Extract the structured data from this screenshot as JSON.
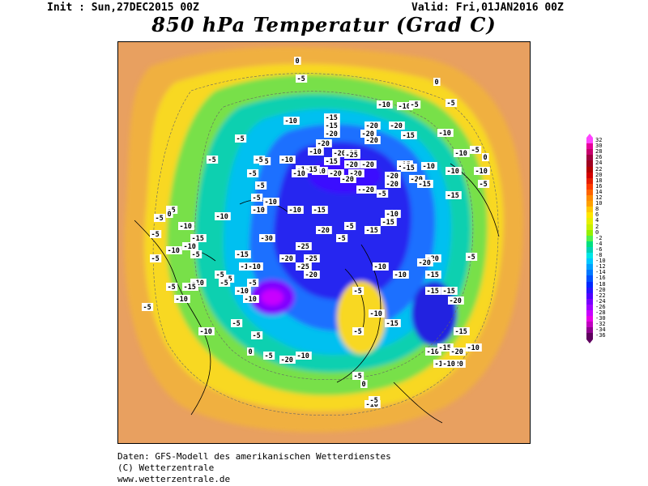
{
  "header": {
    "init": "Init : Sun,27DEC2015 00Z",
    "valid": "Valid: Fri,01JAN2016 00Z",
    "title": "850 hPa Temperatur (Grad C)"
  },
  "footer": {
    "line1": "Daten: GFS-Modell des amerikanischen Wetterdienstes",
    "line2": "(C) Wetterzentrale",
    "line3": "www.wetterzentrale.de"
  },
  "legend": {
    "labels": [
      "32",
      "30",
      "28",
      "26",
      "24",
      "22",
      "20",
      "18",
      "16",
      "14",
      "12",
      "10",
      "8",
      "6",
      "4",
      "2",
      "0",
      "-2",
      "-4",
      "-6",
      "-8",
      "-10",
      "-12",
      "-14",
      "-16",
      "-18",
      "-20",
      "-22",
      "-24",
      "-26",
      "-28",
      "-30",
      "-32",
      "-34",
      "-36"
    ],
    "colors": [
      "#ff44ff",
      "#e6009a",
      "#c8006e",
      "#a00040",
      "#a00020",
      "#b40000",
      "#d20000",
      "#e61e00",
      "#ff3c00",
      "#ff6400",
      "#ff8c00",
      "#ffa000",
      "#ffc800",
      "#ffe600",
      "#e6f000",
      "#c8f000",
      "#96f000",
      "#50f050",
      "#00e080",
      "#00d2b4",
      "#00e6e6",
      "#00c8ff",
      "#00a0ff",
      "#0078ff",
      "#0050ff",
      "#0028ff",
      "#2814ff",
      "#5000ff",
      "#7800ff",
      "#a000ff",
      "#c800ff",
      "#e600e6",
      "#c000c0",
      "#900090",
      "#600060"
    ]
  },
  "map": {
    "contour_labels": [
      {
        "t": "0"
      },
      {
        "t": "-5"
      },
      {
        "t": "0"
      },
      {
        "t": "-5"
      },
      {
        "t": "-10"
      },
      {
        "t": "-10"
      },
      {
        "t": "-5"
      },
      {
        "t": "-10"
      },
      {
        "t": "-15"
      },
      {
        "t": "-15"
      },
      {
        "t": "-20"
      },
      {
        "t": "-20"
      },
      {
        "t": "-20"
      },
      {
        "t": "-15"
      },
      {
        "t": "-10"
      },
      {
        "t": "-5"
      },
      {
        "t": "-20"
      },
      {
        "t": "-20"
      },
      {
        "t": "-20"
      },
      {
        "t": "-25"
      },
      {
        "t": "-20"
      },
      {
        "t": "-15"
      },
      {
        "t": "-5"
      },
      {
        "t": "-10"
      },
      {
        "t": "-10"
      },
      {
        "t": "-20"
      },
      {
        "t": "-20"
      },
      {
        "t": "-15"
      },
      {
        "t": "-10"
      },
      {
        "t": "-5"
      },
      {
        "t": "-20"
      },
      {
        "t": "-20"
      },
      {
        "t": "-15"
      },
      {
        "t": "-20"
      },
      {
        "t": "-20"
      },
      {
        "t": "-15"
      },
      {
        "t": "-20"
      },
      {
        "t": "-5"
      },
      {
        "t": "-5"
      },
      {
        "t": "-10"
      },
      {
        "t": "-15"
      },
      {
        "t": "-10"
      },
      {
        "t": "-5"
      },
      {
        "t": "-10"
      },
      {
        "t": "-10"
      },
      {
        "t": "0"
      },
      {
        "t": "-5"
      },
      {
        "t": "-10"
      },
      {
        "t": "-15"
      },
      {
        "t": "-20"
      },
      {
        "t": "-5"
      },
      {
        "t": "-20"
      },
      {
        "t": "-25"
      },
      {
        "t": "-20"
      },
      {
        "t": "-15"
      },
      {
        "t": "-10"
      },
      {
        "t": "-5"
      },
      {
        "t": "-10"
      },
      {
        "t": "-5"
      },
      {
        "t": "-10"
      },
      {
        "t": "-15"
      },
      {
        "t": "-10"
      },
      {
        "t": "-5"
      },
      {
        "t": "-10"
      },
      {
        "t": "-5"
      },
      {
        "t": "-20"
      },
      {
        "t": "-25"
      },
      {
        "t": "-25"
      },
      {
        "t": "-30"
      },
      {
        "t": "-20"
      },
      {
        "t": "-25"
      },
      {
        "t": "-20"
      },
      {
        "t": "-15"
      },
      {
        "t": "-10"
      },
      {
        "t": "-5"
      },
      {
        "t": "-5"
      },
      {
        "t": "-10"
      },
      {
        "t": "-15"
      },
      {
        "t": "-20"
      },
      {
        "t": "-20"
      },
      {
        "t": "-15"
      },
      {
        "t": "-10"
      },
      {
        "t": "-5"
      },
      {
        "t": "-15"
      },
      {
        "t": "-15"
      },
      {
        "t": "-10"
      },
      {
        "t": "-20"
      },
      {
        "t": "-15"
      },
      {
        "t": "-10"
      },
      {
        "t": "-5"
      },
      {
        "t": "-10"
      },
      {
        "t": "-15"
      },
      {
        "t": "-20"
      },
      {
        "t": "-20"
      },
      {
        "t": "-15"
      },
      {
        "t": "-10"
      },
      {
        "t": "-15"
      },
      {
        "t": "-10"
      },
      {
        "t": "-10"
      },
      {
        "t": "-10"
      },
      {
        "t": "-15"
      },
      {
        "t": "-5"
      },
      {
        "t": "-5"
      },
      {
        "t": "0"
      },
      {
        "t": "-5"
      },
      {
        "t": "-10"
      },
      {
        "t": "-5"
      },
      {
        "t": "-10"
      },
      {
        "t": "-15"
      },
      {
        "t": "-10"
      },
      {
        "t": "-5"
      },
      {
        "t": "-5"
      },
      {
        "t": "-5"
      },
      {
        "t": "-10"
      },
      {
        "t": "-10"
      },
      {
        "t": "-10"
      },
      {
        "t": "-5"
      },
      {
        "t": "-5"
      },
      {
        "t": "-5"
      },
      {
        "t": "-5"
      },
      {
        "t": "-5"
      },
      {
        "t": "0"
      },
      {
        "t": "-5"
      },
      {
        "t": "-10"
      },
      {
        "t": "-5"
      },
      {
        "t": "0"
      },
      {
        "t": "-10"
      },
      {
        "t": "-5"
      },
      {
        "t": "-15"
      },
      {
        "t": "-10"
      },
      {
        "t": "-20"
      }
    ]
  }
}
